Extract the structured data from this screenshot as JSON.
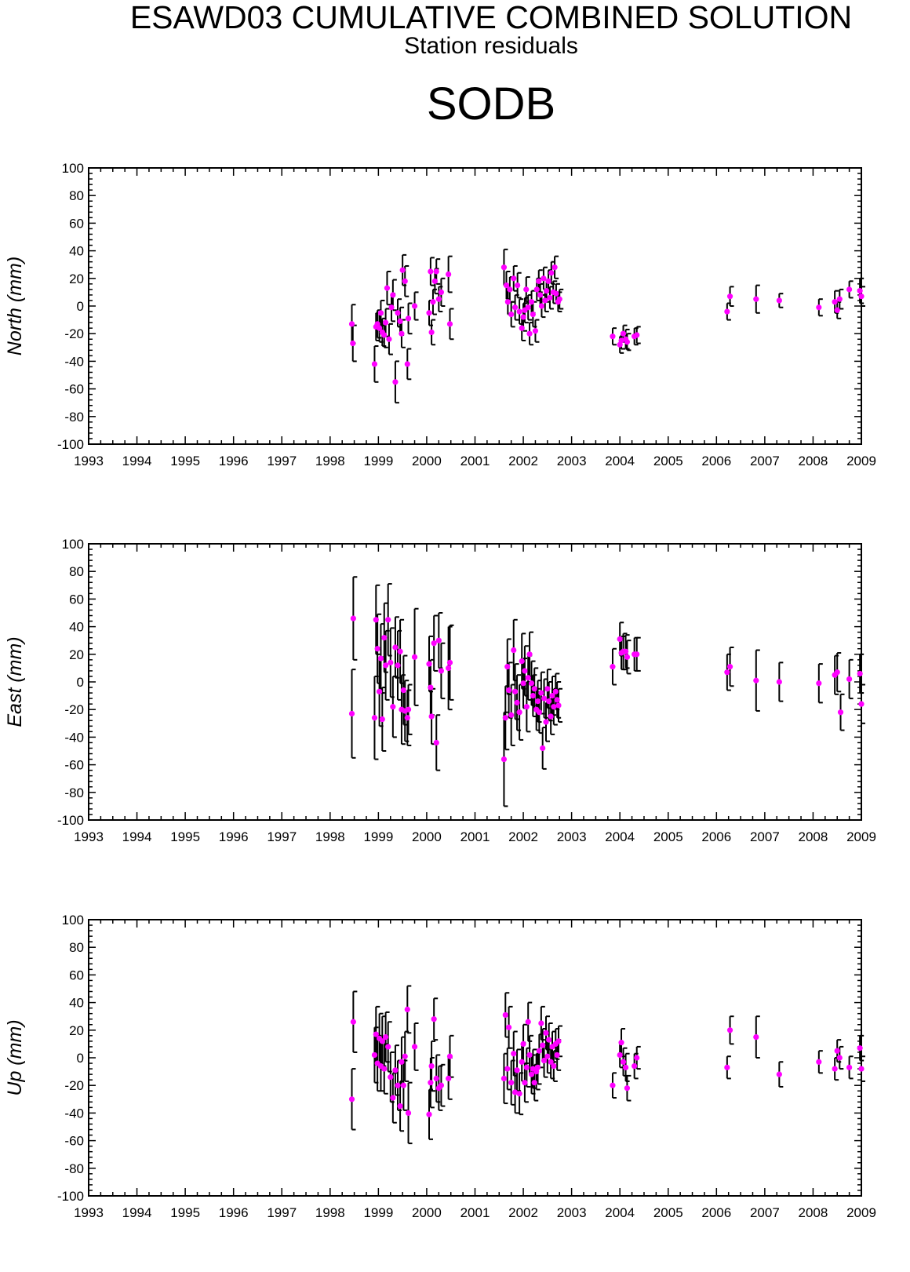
{
  "header": {
    "title": "ESAWD03 CUMULATIVE COMBINED SOLUTION",
    "subtitle": "Station residuals",
    "station": "SODB"
  },
  "colors": {
    "marker": "#ff00ff",
    "errorbar": "#000000",
    "axis": "#000000"
  },
  "chart_data": [
    {
      "type": "scatter",
      "name": "north",
      "ylabel": "North (mm)",
      "ylim": [
        -100,
        100
      ],
      "xlim": [
        1993,
        2009
      ],
      "yticks": [
        "100",
        "80",
        "60",
        "40",
        "20",
        "0",
        "-20",
        "-40",
        "-60",
        "-80",
        "-100"
      ],
      "xticks": [
        "1993",
        "1994",
        "1995",
        "1996",
        "1997",
        "1998",
        "1999",
        "2000",
        "2001",
        "2002",
        "2003",
        "2004",
        "2005",
        "2006",
        "2007",
        "2008",
        "2009"
      ],
      "points": [
        [
          1998.45,
          -13,
          14
        ],
        [
          1998.47,
          -27,
          13
        ],
        [
          1998.92,
          -42,
          13
        ],
        [
          1998.95,
          -15,
          10
        ],
        [
          1998.98,
          -13,
          10
        ],
        [
          1999.02,
          -16,
          10
        ],
        [
          1999.05,
          -5,
          9
        ],
        [
          1999.08,
          -19,
          10
        ],
        [
          1999.12,
          -21,
          9
        ],
        [
          1999.15,
          -12,
          10
        ],
        [
          1999.18,
          13,
          12
        ],
        [
          1999.22,
          -24,
          11
        ],
        [
          1999.27,
          -1,
          10
        ],
        [
          1999.3,
          8,
          11
        ],
        [
          1999.35,
          -55,
          15
        ],
        [
          1999.4,
          -5,
          10
        ],
        [
          1999.45,
          -11,
          10
        ],
        [
          1999.48,
          -20,
          10
        ],
        [
          1999.5,
          26,
          11
        ],
        [
          1999.55,
          18,
          11
        ],
        [
          1999.6,
          -42,
          11
        ],
        [
          1999.62,
          -9,
          11
        ],
        [
          1999.75,
          0,
          10
        ],
        [
          2000.05,
          -5,
          9
        ],
        [
          2000.08,
          25,
          10
        ],
        [
          2000.1,
          -19,
          9
        ],
        [
          2000.13,
          3,
          9
        ],
        [
          2000.17,
          18,
          9
        ],
        [
          2000.2,
          25,
          9
        ],
        [
          2000.25,
          5,
          9
        ],
        [
          2000.3,
          10,
          10
        ],
        [
          2000.45,
          23,
          13
        ],
        [
          2000.48,
          -13,
          11
        ],
        [
          2001.6,
          28,
          13
        ],
        [
          2001.65,
          15,
          10
        ],
        [
          2001.68,
          3,
          9
        ],
        [
          2001.72,
          12,
          9
        ],
        [
          2001.75,
          -6,
          9
        ],
        [
          2001.8,
          20,
          9
        ],
        [
          2001.83,
          -1,
          9
        ],
        [
          2001.88,
          15,
          9
        ],
        [
          2001.92,
          -4,
          9
        ],
        [
          2001.97,
          -16,
          9
        ],
        [
          2002.0,
          -8,
          10
        ],
        [
          2002.03,
          -3,
          9
        ],
        [
          2002.06,
          12,
          9
        ],
        [
          2002.1,
          -1,
          9
        ],
        [
          2002.13,
          -20,
          8
        ],
        [
          2002.17,
          3,
          8
        ],
        [
          2002.2,
          -6,
          9
        ],
        [
          2002.25,
          -18,
          8
        ],
        [
          2002.28,
          12,
          8
        ],
        [
          2002.32,
          18,
          8
        ],
        [
          2002.35,
          8,
          8
        ],
        [
          2002.38,
          0,
          8
        ],
        [
          2002.42,
          20,
          8
        ],
        [
          2002.45,
          4,
          8
        ],
        [
          2002.48,
          11,
          8
        ],
        [
          2002.52,
          18,
          8
        ],
        [
          2002.55,
          6,
          8
        ],
        [
          2002.58,
          24,
          8
        ],
        [
          2002.62,
          10,
          8
        ],
        [
          2002.65,
          28,
          8
        ],
        [
          2002.68,
          9,
          7
        ],
        [
          2002.72,
          3,
          7
        ],
        [
          2002.75,
          5,
          7
        ],
        [
          2003.85,
          -22,
          6
        ],
        [
          2004.0,
          -28,
          6
        ],
        [
          2004.03,
          -25,
          6
        ],
        [
          2004.07,
          -20,
          6
        ],
        [
          2004.12,
          -24,
          7
        ],
        [
          2004.15,
          -26,
          6
        ],
        [
          2004.3,
          -22,
          6
        ],
        [
          2004.35,
          -21,
          6
        ],
        [
          2006.22,
          -4,
          6
        ],
        [
          2006.28,
          7,
          7
        ],
        [
          2006.82,
          5,
          10
        ],
        [
          2007.3,
          4,
          5
        ],
        [
          2008.12,
          -1,
          6
        ],
        [
          2008.45,
          3,
          8
        ],
        [
          2008.5,
          -3,
          6
        ],
        [
          2008.55,
          5,
          7
        ],
        [
          2008.75,
          12,
          6
        ],
        [
          2008.97,
          11,
          9
        ],
        [
          2009.0,
          7,
          7
        ]
      ]
    },
    {
      "type": "scatter",
      "name": "east",
      "ylabel": "East (mm)",
      "ylim": [
        -100,
        100
      ],
      "xlim": [
        1993,
        2009
      ],
      "yticks": [
        "100",
        "80",
        "60",
        "40",
        "20",
        "0",
        "-20",
        "-40",
        "-60",
        "-80",
        "-100"
      ],
      "xticks": [
        "1993",
        "1994",
        "1995",
        "1996",
        "1997",
        "1998",
        "1999",
        "2000",
        "2001",
        "2002",
        "2003",
        "2004",
        "2005",
        "2006",
        "2007",
        "2008",
        "2009"
      ],
      "points": [
        [
          1998.45,
          -23,
          32
        ],
        [
          1998.48,
          46,
          30
        ],
        [
          1998.92,
          -26,
          30
        ],
        [
          1998.95,
          45,
          25
        ],
        [
          1998.98,
          24,
          25
        ],
        [
          1999.02,
          -7,
          25
        ],
        [
          1999.05,
          17,
          25
        ],
        [
          1999.08,
          -27,
          23
        ],
        [
          1999.12,
          32,
          25
        ],
        [
          1999.15,
          12,
          25
        ],
        [
          1999.2,
          45,
          26
        ],
        [
          1999.25,
          14,
          25
        ],
        [
          1999.3,
          -18,
          22
        ],
        [
          1999.35,
          25,
          22
        ],
        [
          1999.4,
          12,
          25
        ],
        [
          1999.45,
          22,
          23
        ],
        [
          1999.48,
          -20,
          25
        ],
        [
          1999.52,
          -6,
          25
        ],
        [
          1999.55,
          -21,
          22
        ],
        [
          1999.6,
          -26,
          20
        ],
        [
          1999.62,
          -20,
          18
        ],
        [
          1999.75,
          18,
          35
        ],
        [
          2000.05,
          13,
          20
        ],
        [
          2000.08,
          -4,
          20
        ],
        [
          2000.1,
          -25,
          20
        ],
        [
          2000.15,
          28,
          20
        ],
        [
          2000.2,
          -44,
          20
        ],
        [
          2000.25,
          30,
          20
        ],
        [
          2000.3,
          8,
          20
        ],
        [
          2000.45,
          10,
          30
        ],
        [
          2000.48,
          14,
          27
        ],
        [
          2001.6,
          -56,
          34
        ],
        [
          2001.63,
          -26,
          23
        ],
        [
          2001.67,
          11,
          20
        ],
        [
          2001.7,
          -6,
          20
        ],
        [
          2001.75,
          -24,
          22
        ],
        [
          2001.8,
          23,
          22
        ],
        [
          2001.83,
          -7,
          20
        ],
        [
          2001.87,
          -15,
          20
        ],
        [
          2001.92,
          -22,
          20
        ],
        [
          2001.97,
          15,
          20
        ],
        [
          2002.0,
          -1,
          18
        ],
        [
          2002.03,
          8,
          18
        ],
        [
          2002.07,
          -18,
          18
        ],
        [
          2002.1,
          3,
          16
        ],
        [
          2002.13,
          20,
          16
        ],
        [
          2002.17,
          -1,
          16
        ],
        [
          2002.2,
          -10,
          15
        ],
        [
          2002.23,
          -5,
          15
        ],
        [
          2002.27,
          -20,
          15
        ],
        [
          2002.3,
          -14,
          15
        ],
        [
          2002.33,
          -22,
          15
        ],
        [
          2002.37,
          -8,
          15
        ],
        [
          2002.4,
          -48,
          15
        ],
        [
          2002.43,
          -12,
          14
        ],
        [
          2002.47,
          -29,
          14
        ],
        [
          2002.5,
          -5,
          14
        ],
        [
          2002.53,
          -14,
          14
        ],
        [
          2002.57,
          -25,
          13
        ],
        [
          2002.6,
          -10,
          14
        ],
        [
          2002.63,
          -18,
          13
        ],
        [
          2002.67,
          -7,
          13
        ],
        [
          2002.7,
          -13,
          13
        ],
        [
          2002.73,
          -17,
          12
        ],
        [
          2003.85,
          11,
          13
        ],
        [
          2004.0,
          31,
          12
        ],
        [
          2004.03,
          21,
          12
        ],
        [
          2004.07,
          22,
          13
        ],
        [
          2004.12,
          22,
          12
        ],
        [
          2004.15,
          18,
          12
        ],
        [
          2004.3,
          20,
          12
        ],
        [
          2004.35,
          20,
          12
        ],
        [
          2006.22,
          7,
          13
        ],
        [
          2006.28,
          11,
          14
        ],
        [
          2006.82,
          1,
          22
        ],
        [
          2007.3,
          0,
          14
        ],
        [
          2008.12,
          -1,
          14
        ],
        [
          2008.45,
          5,
          14
        ],
        [
          2008.5,
          7,
          14
        ],
        [
          2008.57,
          -22,
          13
        ],
        [
          2008.75,
          2,
          14
        ],
        [
          2008.97,
          6,
          14
        ],
        [
          2009.0,
          -16,
          14
        ]
      ]
    },
    {
      "type": "scatter",
      "name": "up",
      "ylabel": "Up (mm)",
      "ylim": [
        -100,
        100
      ],
      "xlim": [
        1993,
        2009
      ],
      "yticks": [
        "100",
        "80",
        "60",
        "40",
        "20",
        "0",
        "-20",
        "-40",
        "-60",
        "-80",
        "-100"
      ],
      "xticks": [
        "1993",
        "1994",
        "1995",
        "1996",
        "1997",
        "1998",
        "1999",
        "2000",
        "2001",
        "2002",
        "2003",
        "2004",
        "2005",
        "2006",
        "2007",
        "2008",
        "2009"
      ],
      "points": [
        [
          1998.45,
          -30,
          22
        ],
        [
          1998.48,
          26,
          22
        ],
        [
          1998.92,
          2,
          20
        ],
        [
          1998.95,
          17,
          20
        ],
        [
          1998.98,
          -4,
          20
        ],
        [
          1999.02,
          14,
          18
        ],
        [
          1999.05,
          -6,
          18
        ],
        [
          1999.08,
          12,
          18
        ],
        [
          1999.12,
          -8,
          18
        ],
        [
          1999.15,
          15,
          18
        ],
        [
          1999.2,
          8,
          18
        ],
        [
          1999.25,
          -14,
          18
        ],
        [
          1999.3,
          -29,
          18
        ],
        [
          1999.35,
          -9,
          18
        ],
        [
          1999.4,
          -20,
          18
        ],
        [
          1999.45,
          -35,
          18
        ],
        [
          1999.48,
          -3,
          18
        ],
        [
          1999.52,
          -20,
          18
        ],
        [
          1999.55,
          1,
          18
        ],
        [
          1999.6,
          35,
          17
        ],
        [
          1999.62,
          -40,
          22
        ],
        [
          1999.75,
          8,
          17
        ],
        [
          2000.05,
          -41,
          18
        ],
        [
          2000.08,
          -18,
          18
        ],
        [
          2000.1,
          -6,
          18
        ],
        [
          2000.15,
          28,
          15
        ],
        [
          2000.2,
          -15,
          17
        ],
        [
          2000.25,
          -22,
          16
        ],
        [
          2000.3,
          -20,
          15
        ],
        [
          2000.45,
          -15,
          15
        ],
        [
          2000.48,
          1,
          15
        ],
        [
          2001.6,
          -15,
          18
        ],
        [
          2001.63,
          31,
          16
        ],
        [
          2001.67,
          -8,
          15
        ],
        [
          2001.7,
          22,
          15
        ],
        [
          2001.75,
          -18,
          16
        ],
        [
          2001.8,
          3,
          16
        ],
        [
          2001.83,
          -25,
          15
        ],
        [
          2001.87,
          -9,
          15
        ],
        [
          2001.92,
          -26,
          15
        ],
        [
          2001.97,
          -3,
          14
        ],
        [
          2002.0,
          10,
          14
        ],
        [
          2002.03,
          -18,
          14
        ],
        [
          2002.07,
          -7,
          14
        ],
        [
          2002.1,
          26,
          14
        ],
        [
          2002.13,
          2,
          14
        ],
        [
          2002.17,
          -12,
          14
        ],
        [
          2002.2,
          -8,
          14
        ],
        [
          2002.23,
          -18,
          13
        ],
        [
          2002.27,
          -10,
          13
        ],
        [
          2002.3,
          -7,
          12
        ],
        [
          2002.33,
          5,
          12
        ],
        [
          2002.37,
          25,
          12
        ],
        [
          2002.4,
          9,
          12
        ],
        [
          2002.43,
          -2,
          12
        ],
        [
          2002.47,
          18,
          12
        ],
        [
          2002.5,
          1,
          12
        ],
        [
          2002.53,
          13,
          12
        ],
        [
          2002.57,
          -3,
          12
        ],
        [
          2002.6,
          8,
          11
        ],
        [
          2002.63,
          -6,
          11
        ],
        [
          2002.67,
          10,
          11
        ],
        [
          2002.7,
          2,
          11
        ],
        [
          2002.73,
          12,
          11
        ],
        [
          2003.85,
          -20,
          9
        ],
        [
          2004.0,
          2,
          9
        ],
        [
          2004.03,
          11,
          10
        ],
        [
          2004.07,
          -3,
          10
        ],
        [
          2004.12,
          -7,
          10
        ],
        [
          2004.15,
          -22,
          9
        ],
        [
          2004.3,
          -6,
          9
        ],
        [
          2004.35,
          0,
          8
        ],
        [
          2006.22,
          -7,
          8
        ],
        [
          2006.28,
          20,
          10
        ],
        [
          2006.82,
          15,
          15
        ],
        [
          2007.3,
          -12,
          9
        ],
        [
          2008.12,
          -3,
          8
        ],
        [
          2008.45,
          -8,
          8
        ],
        [
          2008.5,
          5,
          8
        ],
        [
          2008.55,
          0,
          8
        ],
        [
          2008.75,
          -7,
          8
        ],
        [
          2008.97,
          7,
          9
        ],
        [
          2009.0,
          -8,
          9
        ]
      ]
    }
  ]
}
